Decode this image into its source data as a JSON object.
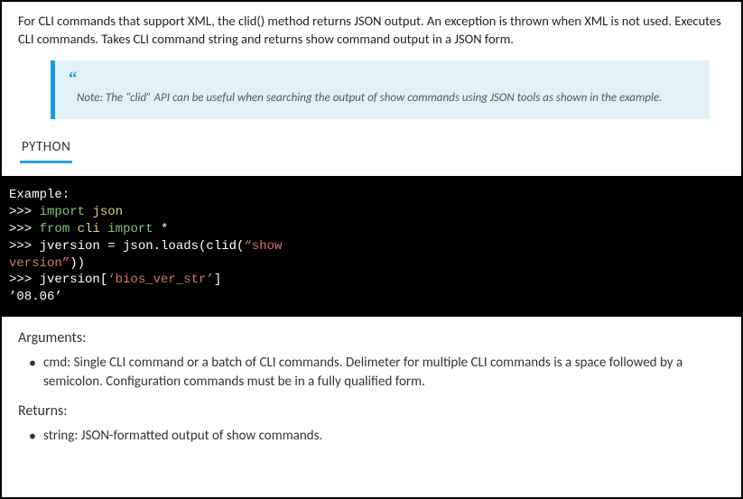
{
  "intro": "For CLI commands that support XML, the clid() method returns JSON output. An exception is thrown when XML  is not used. Executes CLI commands. Takes CLI command string and returns show command output in a JSON form.",
  "note": {
    "quotemark": "“",
    "text": "Note: The “clid” API can be useful when searching the output of show  commands using JSON tools as shown in the example.",
    "accent_color": "#1a9dd9",
    "background_color": "#e2f1f7"
  },
  "tab": {
    "label": "PYTHON",
    "underline_color": "#2aa3df"
  },
  "code": {
    "background_color": "#000000",
    "text_color": "#ffffff",
    "keyword_color": "#7cc97c",
    "ident_color": "#d8d27a",
    "string_color": "#d4786a",
    "font_family": "Courier New",
    "lines": {
      "l0": "Example:",
      "l1a": ">>> ",
      "l1b": "import",
      "l1c": " json",
      "l2a": ">>> ",
      "l2b": "from",
      "l2c": " cli ",
      "l2d": "import",
      "l2e": " *",
      "l3a": ">>> jversion = json.loads(clid(",
      "l3b": "“show",
      "l4a": "version”",
      "l4b": "))",
      "l5a": ">>> jversion[",
      "l5b": "‘bios_ver_str’",
      "l5c": "]",
      "l6": "’08.06’"
    }
  },
  "arguments": {
    "heading": "Arguments:",
    "items": [
      "cmd: Single CLI command or a batch of CLI commands. Delimeter for multiple CLI commands is a space followed by a semicolon. Configuration commands must be in a fully qualified form."
    ]
  },
  "returns": {
    "heading": "Returns:",
    "items": [
      "string: JSON-formatted output of show commands."
    ]
  }
}
